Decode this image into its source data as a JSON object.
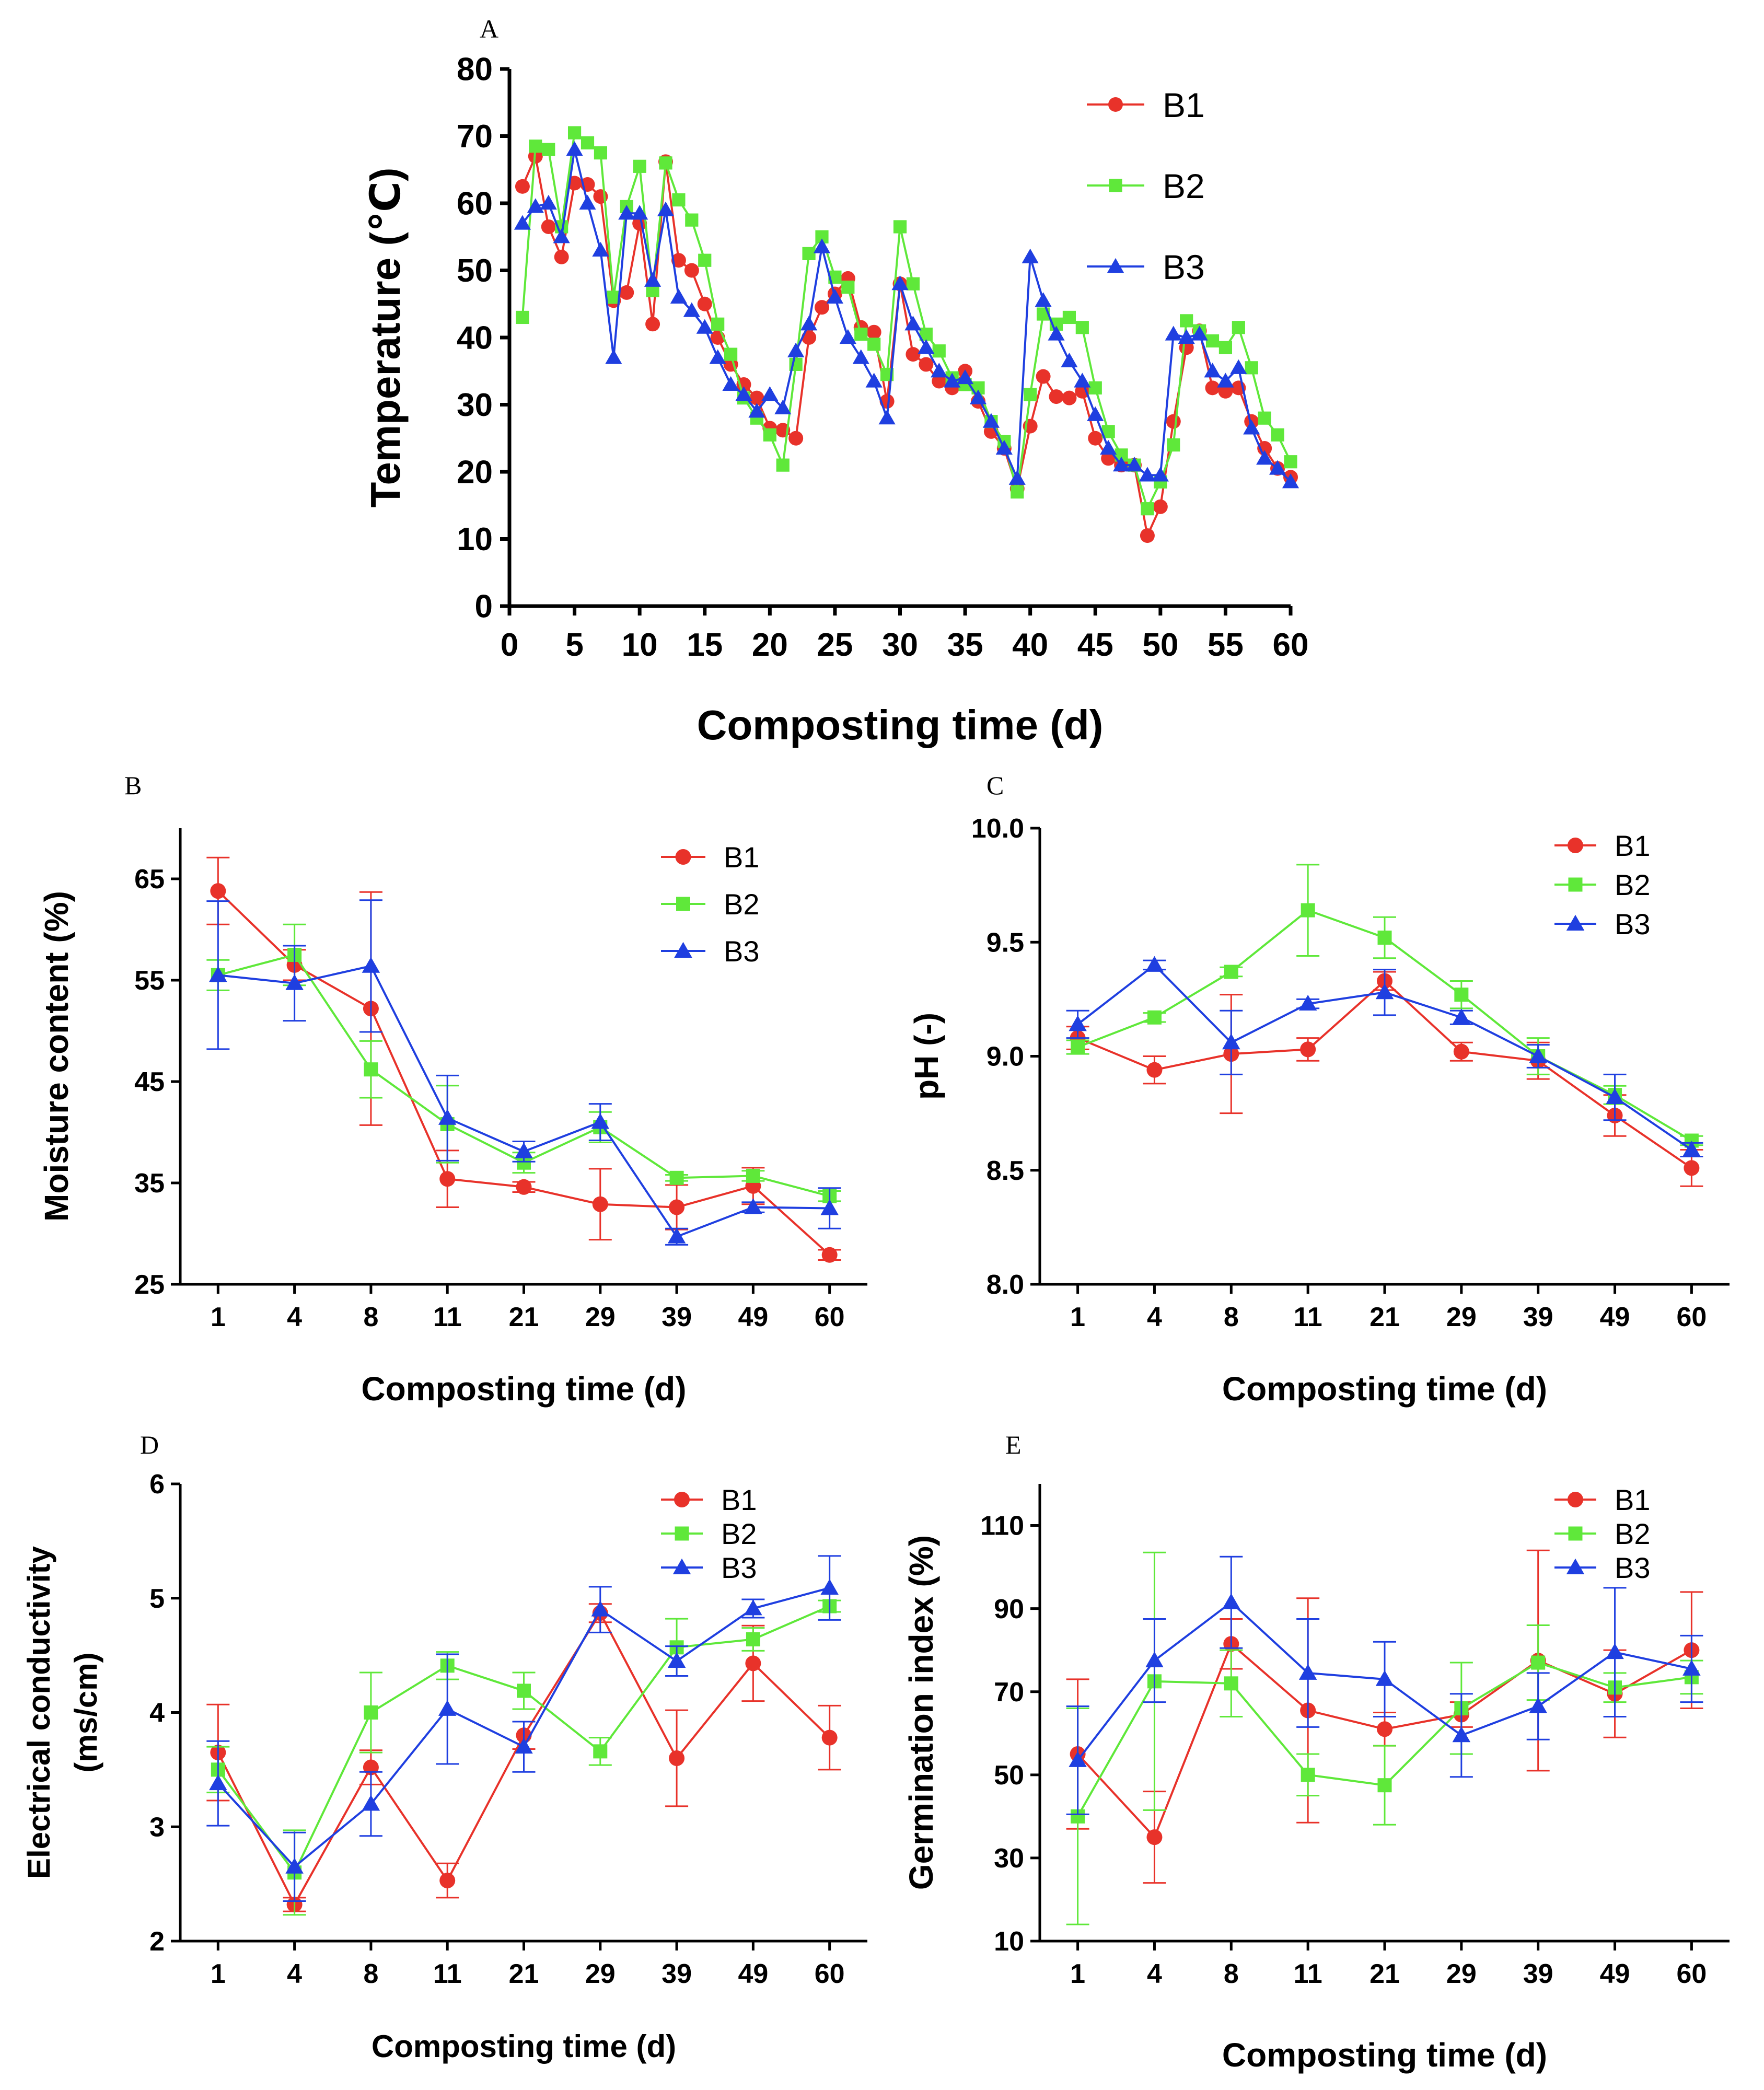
{
  "figure": {
    "colors": {
      "B1": "#e8322a",
      "B2": "#5fe83a",
      "B3": "#1f3fe0"
    }
  },
  "chart_data": [
    {
      "panel": "A",
      "type": "line",
      "title": "",
      "xlabel": "Composting time (d)",
      "ylabel": "Temperature  (℃)",
      "xlim": [
        0,
        60
      ],
      "ylim": [
        0,
        80
      ],
      "xticks": [
        "0",
        "5",
        "10",
        "15",
        "20",
        "25",
        "30",
        "35",
        "40",
        "45",
        "50",
        "55",
        "60"
      ],
      "yticks": [
        "0",
        "10",
        "20",
        "30",
        "40",
        "50",
        "60",
        "70",
        "80"
      ],
      "legend_position": "top-right",
      "x": [
        1,
        2,
        3,
        4,
        5,
        6,
        7,
        8,
        9,
        10,
        11,
        12,
        13,
        14,
        15,
        16,
        17,
        18,
        19,
        20,
        21,
        22,
        23,
        24,
        25,
        26,
        27,
        28,
        29,
        30,
        31,
        32,
        33,
        34,
        35,
        36,
        37,
        38,
        39,
        40,
        41,
        42,
        43,
        44,
        45,
        46,
        47,
        48,
        49,
        50,
        51,
        52,
        53,
        54,
        55,
        56,
        57,
        58,
        59,
        60
      ],
      "series": [
        {
          "name": "B1",
          "marker": "circle",
          "values": [
            62.5,
            67,
            56.5,
            52,
            63,
            62.8,
            61,
            45.5,
            46.7,
            57,
            42,
            66.2,
            51.5,
            50,
            45,
            40,
            36,
            33,
            31,
            26.5,
            26.2,
            25,
            40,
            44.5,
            46.5,
            48.8,
            41.5,
            40.8,
            30.5,
            48,
            37.5,
            36,
            33.5,
            32.5,
            35,
            30.5,
            26,
            23.5,
            17.5,
            26.8,
            34.2,
            31.2,
            31,
            32,
            25,
            22,
            21,
            21,
            10.5,
            14.8,
            27.5,
            38.5,
            41,
            32.5,
            32,
            32.5,
            27.5,
            23.5,
            20.5,
            19.2
          ]
        },
        {
          "name": "B2",
          "marker": "square",
          "values": [
            43,
            68.5,
            68,
            56.5,
            70.5,
            69,
            67.5,
            46,
            59.5,
            65.5,
            47,
            66,
            60.5,
            57.5,
            51.5,
            42,
            37.5,
            31,
            28,
            25.5,
            21,
            36,
            52.5,
            55,
            49,
            47.5,
            40.5,
            39,
            34.5,
            56.5,
            48,
            40.5,
            38,
            34,
            33,
            32.5,
            27.5,
            24.5,
            17,
            31.5,
            43.5,
            42,
            43,
            41.5,
            32.5,
            26,
            22.5,
            21,
            14.5,
            18.5,
            24,
            42.5,
            41,
            39.5,
            38.5,
            41.5,
            35.5,
            28,
            25.5,
            21.5
          ]
        },
        {
          "name": "B3",
          "marker": "triangle",
          "values": [
            57,
            59.5,
            60,
            55,
            68,
            60,
            53,
            37,
            58.5,
            58.5,
            48.5,
            59,
            46,
            44,
            41.5,
            37,
            33,
            31.5,
            29,
            31.5,
            29.5,
            38,
            42,
            53.5,
            46,
            40,
            37,
            33.5,
            28,
            48,
            42,
            38.5,
            35,
            33.5,
            34,
            31,
            27.5,
            23.5,
            19,
            52,
            45.5,
            40.5,
            36.5,
            33.5,
            28.5,
            23.5,
            21,
            21,
            19.5,
            19.5,
            40.5,
            40,
            40.5,
            35,
            33.5,
            35.5,
            26.5,
            22,
            20.5,
            18.5
          ]
        }
      ]
    },
    {
      "panel": "B",
      "type": "line",
      "title": "",
      "xlabel": "Composting time (d)",
      "ylabel": "Moisture content (%)",
      "ylim": [
        25,
        70
      ],
      "categories": [
        "1",
        "4",
        "8",
        "11",
        "21",
        "29",
        "39",
        "49",
        "60"
      ],
      "yticks": [
        "25",
        "35",
        "45",
        "55",
        "65"
      ],
      "legend_position": "top-right",
      "series": [
        {
          "name": "B1",
          "marker": "circle",
          "values": [
            63.8,
            56.5,
            52.2,
            35.4,
            34.6,
            32.9,
            32.6,
            34.7,
            27.9
          ],
          "errors": [
            3.3,
            1.5,
            11.5,
            2.8,
            0.5,
            3.5,
            2.2,
            1.8,
            0.5
          ]
        },
        {
          "name": "B2",
          "marker": "square",
          "values": [
            55.5,
            57.5,
            46.2,
            40.8,
            37,
            40.5,
            35.5,
            35.7,
            33.7
          ],
          "errors": [
            1.5,
            3,
            2.8,
            3.8,
            1,
            1.5,
            0.3,
            0.5,
            0.5
          ]
        },
        {
          "name": "B3",
          "marker": "triangle",
          "values": [
            55.5,
            54.7,
            56.4,
            41.4,
            38.1,
            41,
            29.7,
            32.6,
            32.5
          ],
          "errors": [
            7.3,
            3.7,
            6.5,
            4.2,
            1,
            1.8,
            0.8,
            0.5,
            2
          ]
        }
      ]
    },
    {
      "panel": "C",
      "type": "line",
      "title": "",
      "xlabel": "Composting time (d)",
      "ylabel": "pH (-)",
      "ylim": [
        8.0,
        10.0
      ],
      "categories": [
        "1",
        "4",
        "8",
        "11",
        "21",
        "29",
        "39",
        "49",
        "60"
      ],
      "yticks": [
        "8.0",
        "8.5",
        "9.0",
        "9.5",
        "10.0"
      ],
      "legend_position": "top-right",
      "series": [
        {
          "name": "B1",
          "marker": "circle",
          "values": [
            9.08,
            8.94,
            9.01,
            9.03,
            9.33,
            9.02,
            8.98,
            8.74,
            8.51
          ],
          "errors": [
            0.05,
            0.06,
            0.26,
            0.05,
            0.04,
            0.04,
            0.08,
            0.09,
            0.08
          ]
        },
        {
          "name": "B2",
          "marker": "square",
          "values": [
            9.04,
            9.17,
            9.37,
            9.64,
            9.52,
            9.27,
            9.0,
            8.83,
            8.63
          ],
          "errors": [
            0.03,
            0.02,
            0.02,
            0.2,
            0.09,
            0.06,
            0.08,
            0.04,
            0.02
          ]
        },
        {
          "name": "B3",
          "marker": "triangle",
          "values": [
            9.14,
            9.4,
            9.06,
            9.23,
            9.28,
            9.17,
            9.0,
            8.82,
            8.59
          ],
          "errors": [
            0.06,
            0.02,
            0.14,
            0.02,
            0.1,
            0.03,
            0.05,
            0.1,
            0.03
          ]
        }
      ]
    },
    {
      "panel": "D",
      "type": "line",
      "title": "",
      "xlabel": "Composting time (d)",
      "ylabel": "Electrical conductivity (ms/cm)",
      "ylabel_lines": [
        "Electrical conductivity",
        "(ms/cm)"
      ],
      "ylim": [
        2,
        6
      ],
      "categories": [
        "1",
        "4",
        "8",
        "11",
        "21",
        "29",
        "39",
        "49",
        "60"
      ],
      "yticks": [
        "2",
        "3",
        "4",
        "5",
        "6"
      ],
      "legend_position": "top-right",
      "series": [
        {
          "name": "B1",
          "marker": "circle",
          "values": [
            3.65,
            2.32,
            3.52,
            2.53,
            3.8,
            4.87,
            3.6,
            4.43,
            3.78
          ],
          "errors": [
            0.42,
            0.06,
            0.15,
            0.15,
            0.12,
            0.08,
            0.42,
            0.33,
            0.28
          ]
        },
        {
          "name": "B2",
          "marker": "square",
          "values": [
            3.5,
            2.6,
            4.0,
            4.41,
            4.19,
            3.66,
            4.57,
            4.64,
            4.93
          ],
          "errors": [
            0.2,
            0.37,
            0.35,
            0.12,
            0.16,
            0.12,
            0.25,
            0.1,
            0.05
          ]
        },
        {
          "name": "B3",
          "marker": "triangle",
          "values": [
            3.38,
            2.65,
            3.2,
            4.03,
            3.7,
            4.9,
            4.45,
            4.91,
            5.09
          ],
          "errors": [
            0.37,
            0.3,
            0.28,
            0.48,
            0.22,
            0.2,
            0.13,
            0.08,
            0.28
          ]
        }
      ]
    },
    {
      "panel": "E",
      "type": "line",
      "title": "",
      "xlabel": "Composting time (d)",
      "ylabel": "Germination index (%)",
      "ylim": [
        10,
        120
      ],
      "categories": [
        "1",
        "4",
        "8",
        "11",
        "21",
        "29",
        "39",
        "49",
        "60"
      ],
      "yticks": [
        "10",
        "30",
        "50",
        "70",
        "90",
        "110"
      ],
      "legend_position": "top-right",
      "series": [
        {
          "name": "B1",
          "marker": "circle",
          "values": [
            55,
            35,
            81.5,
            65.5,
            61,
            64.5,
            77.5,
            69.5,
            80
          ],
          "errors": [
            18,
            11,
            6,
            27,
            4,
            3,
            26.5,
            10.5,
            14
          ]
        },
        {
          "name": "B2",
          "marker": "square",
          "values": [
            40,
            72.5,
            72,
            50,
            47.5,
            66,
            77,
            71,
            73.5
          ],
          "errors": [
            26,
            31,
            8,
            5,
            9.5,
            11,
            9,
            3.5,
            4
          ]
        },
        {
          "name": "B3",
          "marker": "triangle",
          "values": [
            53.5,
            77.5,
            91.5,
            74.5,
            73,
            59.5,
            66.5,
            79.5,
            75.5
          ],
          "errors": [
            13,
            10,
            11,
            13,
            9,
            10,
            8,
            15.5,
            8
          ]
        }
      ]
    }
  ]
}
